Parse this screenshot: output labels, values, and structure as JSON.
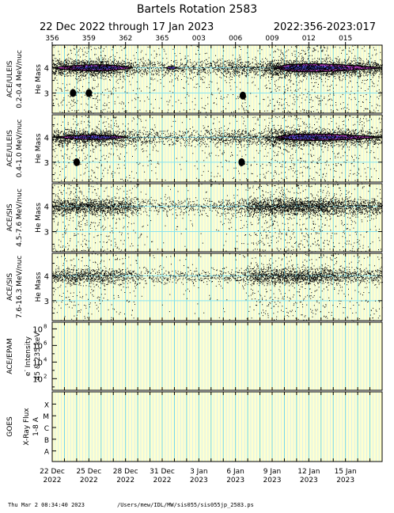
{
  "header": {
    "title": "Bartels Rotation 2583",
    "date_range": "22 Dec 2022 through 17 Jan 2023",
    "doy_range": "2022:356-2023:017"
  },
  "footer": {
    "timestamp": "Thu Mar  2 08:34:40 2023",
    "path": "/Users/mew/IDL/MW/sis055/sis055jp_2583.ps"
  },
  "colors": {
    "background": "#ffffd0",
    "day_line": "#c8ecf8",
    "major_line": "#70d6ee",
    "ref_line": "#88e4f0",
    "points": "#000000",
    "density_low": "#c040c8",
    "density_high": "#5050e0"
  },
  "chart_data": {
    "type": "scatter",
    "x_units": "day of year",
    "x_range": [
      356,
      383
    ],
    "doy_ticks": [
      "356",
      "359",
      "362",
      "365",
      "003",
      "006",
      "009",
      "012",
      "015"
    ],
    "date_ticks": [
      {
        "label": "22 Dec",
        "year": "2022"
      },
      {
        "label": "25 Dec",
        "year": "2022"
      },
      {
        "label": "28 Dec",
        "year": "2022"
      },
      {
        "label": "31 Dec",
        "year": "2022"
      },
      {
        "label": "3 Jan",
        "year": "2023"
      },
      {
        "label": "6 Jan",
        "year": "2023"
      },
      {
        "label": "9 Jan",
        "year": "2023"
      },
      {
        "label": "12 Jan",
        "year": "2023"
      },
      {
        "label": "15 Jan",
        "year": "2023"
      }
    ],
    "panels": [
      {
        "instrument": "ACE/ULEIS",
        "energy": "0.2-0.4 MeV/nuc",
        "ylabel": "He Mass",
        "yticks": [
          "3",
          "4"
        ],
        "density": [
          {
            "start": 356.0,
            "end": 362.6,
            "center": 359.8,
            "y": 4.0,
            "width": 0.25
          },
          {
            "start": 365.3,
            "end": 366.2,
            "center": 365.8,
            "y": 4.0,
            "width": 0.1
          },
          {
            "start": 374.3,
            "end": 383.0,
            "center": 375.6,
            "y": 4.0,
            "width": 0.32
          }
        ],
        "he3": [
          {
            "x": 357.7,
            "y": 3.0
          },
          {
            "x": 359.0,
            "y": 3.0
          },
          {
            "x": 371.6,
            "y": 2.9
          }
        ],
        "activity": [
          [
            356,
            0.7
          ],
          [
            358.5,
            0.9
          ],
          [
            360,
            1.0
          ],
          [
            362,
            0.5
          ],
          [
            363,
            0.2
          ],
          [
            366,
            0.25
          ],
          [
            369,
            0.2
          ],
          [
            371,
            0.5
          ],
          [
            373,
            0.3
          ],
          [
            374.2,
            1.0
          ],
          [
            378,
            0.9
          ],
          [
            383,
            0.5
          ]
        ]
      },
      {
        "instrument": "ACE/ULEIS",
        "energy": "0.4-1.0 MeV/nuc",
        "ylabel": "He Mass",
        "yticks": [
          "3",
          "4"
        ],
        "density": [
          {
            "start": 356.0,
            "end": 362.2,
            "center": 359.6,
            "y": 4.0,
            "width": 0.18
          },
          {
            "start": 374.3,
            "end": 383.0,
            "center": 376.0,
            "y": 4.0,
            "width": 0.26
          }
        ],
        "he3": [
          {
            "x": 358.0,
            "y": 3.0
          },
          {
            "x": 371.5,
            "y": 3.0
          }
        ],
        "activity": [
          [
            356,
            0.6
          ],
          [
            359,
            0.8
          ],
          [
            361,
            0.6
          ],
          [
            362.5,
            0.3
          ],
          [
            365,
            0.15
          ],
          [
            368,
            0.15
          ],
          [
            371,
            0.4
          ],
          [
            373,
            0.25
          ],
          [
            374.2,
            0.9
          ],
          [
            378,
            0.8
          ],
          [
            383,
            0.4
          ]
        ]
      },
      {
        "instrument": "ACE/SIS",
        "energy": "4.5-7.6 MeV/nuc",
        "ylabel": "He Mass",
        "yticks": [
          "3",
          "4"
        ],
        "density": [],
        "he3": [],
        "activity": [
          [
            356,
            0.75
          ],
          [
            358,
            0.85
          ],
          [
            360,
            0.8
          ],
          [
            362,
            0.55
          ],
          [
            363.5,
            0.12
          ],
          [
            366,
            0.12
          ],
          [
            369,
            0.12
          ],
          [
            371.5,
            0.25
          ],
          [
            372.3,
            0.8
          ],
          [
            375,
            1.0
          ],
          [
            378,
            0.95
          ],
          [
            380,
            0.55
          ],
          [
            383,
            0.45
          ]
        ]
      },
      {
        "instrument": "ACE/SIS",
        "energy": "7.6-16.3 MeV/nuc",
        "ylabel": "He Mass",
        "yticks": [
          "3",
          "4"
        ],
        "density": [],
        "he3": [],
        "activity": [
          [
            356,
            0.45
          ],
          [
            358,
            0.55
          ],
          [
            360,
            0.5
          ],
          [
            362,
            0.3
          ],
          [
            363.5,
            0.08
          ],
          [
            366,
            0.08
          ],
          [
            369,
            0.1
          ],
          [
            371.5,
            0.15
          ],
          [
            372.3,
            0.55
          ],
          [
            375,
            0.75
          ],
          [
            378,
            0.7
          ],
          [
            380,
            0.35
          ],
          [
            383,
            0.25
          ]
        ]
      },
      {
        "instrument": "ACE/EPAM",
        "ylabel_line1": "e",
        "ylabel_sup": "-",
        "ylabel_line1_rest": " Intensity",
        "ylabel_line2": "45 & 235 keV",
        "ytick_exponents": [
          "2",
          "4",
          "6",
          "8"
        ],
        "ytick_base": "10"
      },
      {
        "instrument": "GOES",
        "ylabel_line1": "X-Ray Flux",
        "ylabel_line2": "1-8 A",
        "yticks": [
          "A",
          "B",
          "C",
          "M",
          "X"
        ]
      }
    ]
  }
}
